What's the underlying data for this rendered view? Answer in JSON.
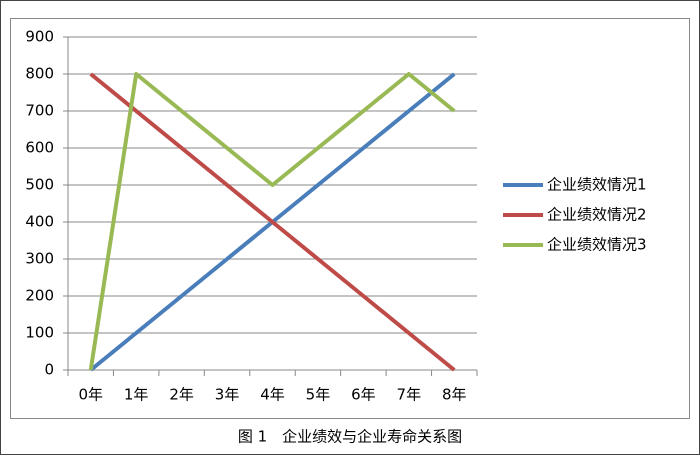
{
  "chart_data": {
    "type": "line",
    "caption": "图 1　企业绩效与企业寿命关系图",
    "categories": [
      "0年",
      "1年",
      "2年",
      "3年",
      "4年",
      "5年",
      "6年",
      "7年",
      "8年"
    ],
    "series": [
      {
        "name": "企业绩效情况1",
        "color": "#4a7ebb",
        "values": [
          0,
          100,
          200,
          300,
          400,
          500,
          600,
          700,
          800
        ]
      },
      {
        "name": "企业绩效情况2",
        "color": "#be4b48",
        "values": [
          800,
          700,
          600,
          500,
          400,
          300,
          200,
          100,
          0
        ]
      },
      {
        "name": "企业绩效情况3",
        "color": "#98b954",
        "values": [
          0,
          800,
          700,
          600,
          500,
          600,
          700,
          800,
          700
        ]
      }
    ],
    "ylim": [
      0,
      900
    ],
    "yticks": [
      0,
      100,
      200,
      300,
      400,
      500,
      600,
      700,
      800,
      900
    ],
    "grid": true,
    "legend": "right"
  }
}
